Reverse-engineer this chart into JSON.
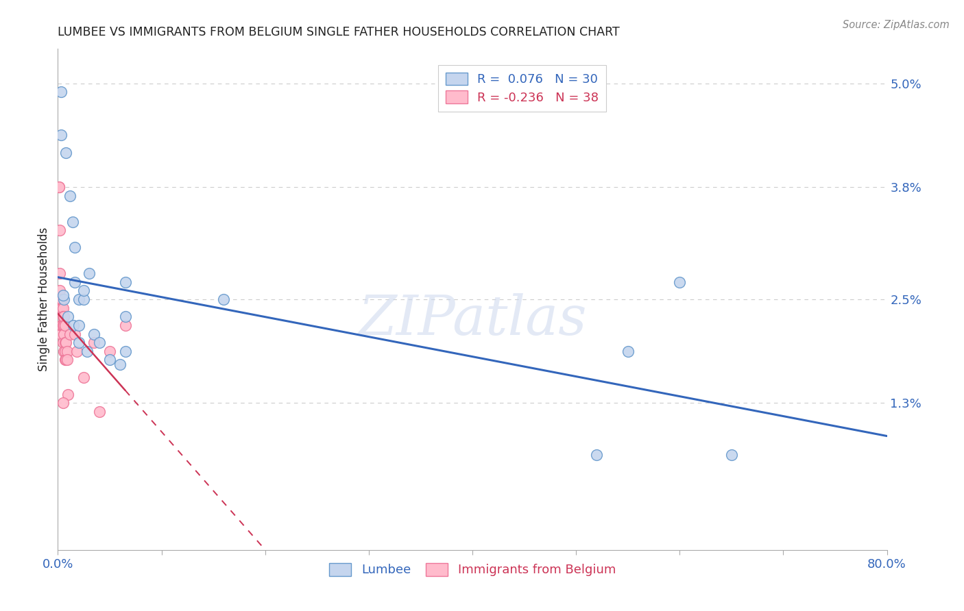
{
  "title": "LUMBEE VS IMMIGRANTS FROM BELGIUM SINGLE FATHER HOUSEHOLDS CORRELATION CHART",
  "source": "Source: ZipAtlas.com",
  "ylabel": "Single Father Households",
  "yticks": [
    0.0,
    0.013,
    0.025,
    0.038,
    0.05
  ],
  "ytick_labels": [
    "",
    "1.3%",
    "2.5%",
    "3.8%",
    "5.0%"
  ],
  "xmin": 0.0,
  "xmax": 0.8,
  "ymin": -0.004,
  "ymax": 0.054,
  "watermark": "ZIPatlas",
  "lumbee_x": [
    0.003,
    0.003,
    0.008,
    0.012,
    0.014,
    0.016,
    0.016,
    0.02,
    0.025,
    0.025,
    0.03,
    0.065,
    0.065,
    0.16,
    0.55,
    0.006,
    0.01,
    0.015,
    0.02,
    0.028,
    0.035,
    0.04,
    0.05,
    0.06,
    0.065,
    0.6,
    0.65,
    0.005,
    0.02,
    0.52
  ],
  "lumbee_y": [
    0.049,
    0.044,
    0.042,
    0.037,
    0.034,
    0.031,
    0.027,
    0.025,
    0.025,
    0.026,
    0.028,
    0.027,
    0.023,
    0.025,
    0.019,
    0.025,
    0.023,
    0.022,
    0.02,
    0.019,
    0.021,
    0.02,
    0.018,
    0.0175,
    0.019,
    0.027,
    0.007,
    0.0255,
    0.022,
    0.007
  ],
  "belgium_x": [
    0.001,
    0.001,
    0.002,
    0.002,
    0.002,
    0.003,
    0.003,
    0.003,
    0.003,
    0.004,
    0.004,
    0.004,
    0.005,
    0.005,
    0.005,
    0.005,
    0.006,
    0.006,
    0.006,
    0.006,
    0.007,
    0.007,
    0.007,
    0.007,
    0.008,
    0.008,
    0.009,
    0.009,
    0.01,
    0.012,
    0.016,
    0.018,
    0.025,
    0.035,
    0.05,
    0.065,
    0.04,
    0.005
  ],
  "belgium_y": [
    0.038,
    0.038,
    0.033,
    0.028,
    0.026,
    0.025,
    0.024,
    0.022,
    0.021,
    0.025,
    0.024,
    0.022,
    0.024,
    0.023,
    0.022,
    0.02,
    0.023,
    0.022,
    0.021,
    0.019,
    0.022,
    0.02,
    0.019,
    0.018,
    0.02,
    0.018,
    0.019,
    0.018,
    0.014,
    0.021,
    0.021,
    0.019,
    0.016,
    0.02,
    0.019,
    0.022,
    0.012,
    0.013
  ],
  "lumbee_R": 0.076,
  "lumbee_N": 30,
  "belgium_R": -0.236,
  "belgium_N": 38,
  "lumbee_line_color": "#3366bb",
  "belgium_line_color": "#cc3355",
  "lumbee_scatter_facecolor": "#c5d5ee",
  "lumbee_scatter_edge": "#6699cc",
  "belgium_scatter_facecolor": "#ffbbcc",
  "belgium_scatter_edge": "#ee7799",
  "background_color": "#ffffff",
  "grid_color": "#cccccc",
  "title_color": "#222222",
  "tick_color": "#3366bb",
  "source_color": "#888888"
}
